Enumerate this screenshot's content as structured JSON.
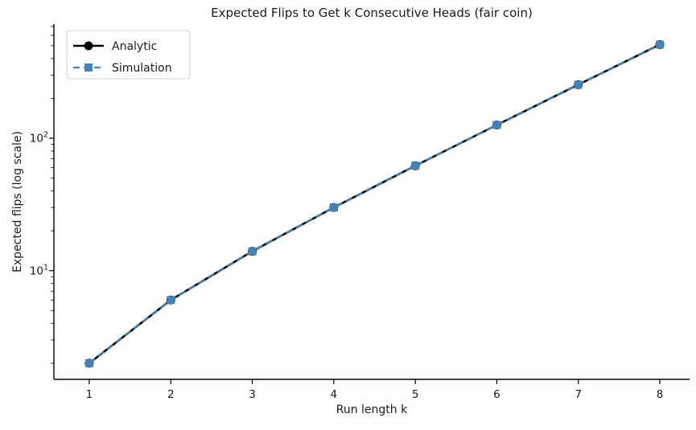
{
  "chart_data": {
    "type": "line",
    "title": "Expected Flips to Get k Consecutive Heads (fair coin)",
    "xlabel": "Run length k",
    "ylabel": "Expected flips (log scale)",
    "x": [
      1,
      2,
      3,
      4,
      5,
      6,
      7,
      8
    ],
    "series": [
      {
        "name": "Analytic",
        "values": [
          2,
          6,
          14,
          30,
          62,
          126,
          254,
          510
        ],
        "color": "#000000",
        "marker": "circle",
        "linestyle": "solid"
      },
      {
        "name": "Simulation",
        "values": [
          2,
          6,
          14,
          30,
          62,
          126,
          254,
          510
        ],
        "color": "#4682b4",
        "marker": "square",
        "linestyle": "dashed"
      }
    ],
    "yscale": "log",
    "xlim": [
      0.566,
      8.365
    ],
    "ylim": [
      1.51,
      728
    ],
    "xticks": [
      1,
      2,
      3,
      4,
      5,
      6,
      7,
      8
    ],
    "yticks_major": [
      {
        "value": 10,
        "base": "10",
        "exp": "1"
      },
      {
        "value": 100,
        "base": "10",
        "exp": "2"
      }
    ],
    "legend": {
      "position": "upper left"
    },
    "grid": false,
    "axis_color": "#000000",
    "legend_border_color": "#cccccc"
  }
}
